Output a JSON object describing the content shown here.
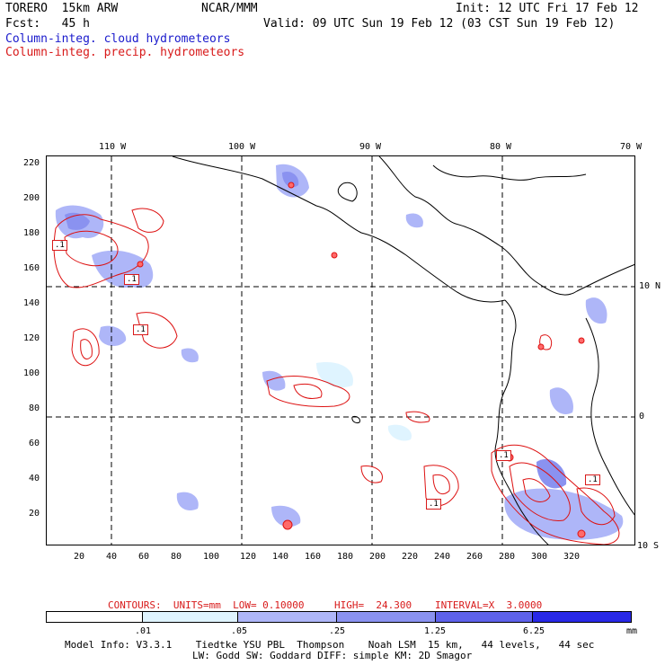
{
  "header": {
    "model": "TORERO  15km ARW",
    "org": "NCAR/MMM",
    "init": "Init: 12 UTC Fri 17 Feb 12",
    "forecast": "Fcst:   45 h",
    "valid": "Valid: 09 UTC Sun 19 Feb 12 (03 CST Sun 19 Feb 12)",
    "field1": "Column-integ. cloud hydrometeors",
    "field2": "Column-integ. precip. hydrometeors"
  },
  "colors": {
    "field1": "#1a1acc",
    "field2": "#d81a1a",
    "contour": "#dd1111",
    "coast": "#000000",
    "shade_levels": [
      "#ffffff",
      "#dff4ff",
      "#aeb6f8",
      "#8a92f0",
      "#5e62ea",
      "#2828e6"
    ]
  },
  "map": {
    "top_lon_labels": [
      "110 W",
      "100 W",
      "90 W",
      "80 W",
      "70 W"
    ],
    "right_lat_labels": [
      "10 N",
      "0",
      "10 S"
    ],
    "left_y_ticks": [
      "220",
      "200",
      "180",
      "160",
      "140",
      "120",
      "100",
      "80",
      "60",
      "40",
      "20"
    ],
    "bottom_x_ticks": [
      "20",
      "40",
      "60",
      "80",
      "100",
      "120",
      "140",
      "160",
      "180",
      "200",
      "220",
      "240",
      "260",
      "280",
      "300",
      "320"
    ],
    "box_labels": [
      ".1",
      ".1",
      ".1",
      ".1",
      ".1",
      ".1"
    ]
  },
  "contour_info": {
    "label": "CONTOURS:  UNITS=mm  LOW= 0.10000",
    "high": "HIGH=  24.300",
    "interval": "INTERVAL=X  3.0000"
  },
  "colorbar": {
    "ticks": [
      ".01",
      ".05",
      ".25",
      "1.25",
      "6.25"
    ],
    "unit": "mm"
  },
  "footer": {
    "line1": "Model Info: V3.3.1    Tiedtke YSU PBL  Thompson    Noah LSM  15 km,   44 levels,   44 sec",
    "line2": "LW: Godd SW: Goddard DIFF: simple KM: 2D Smagor"
  }
}
